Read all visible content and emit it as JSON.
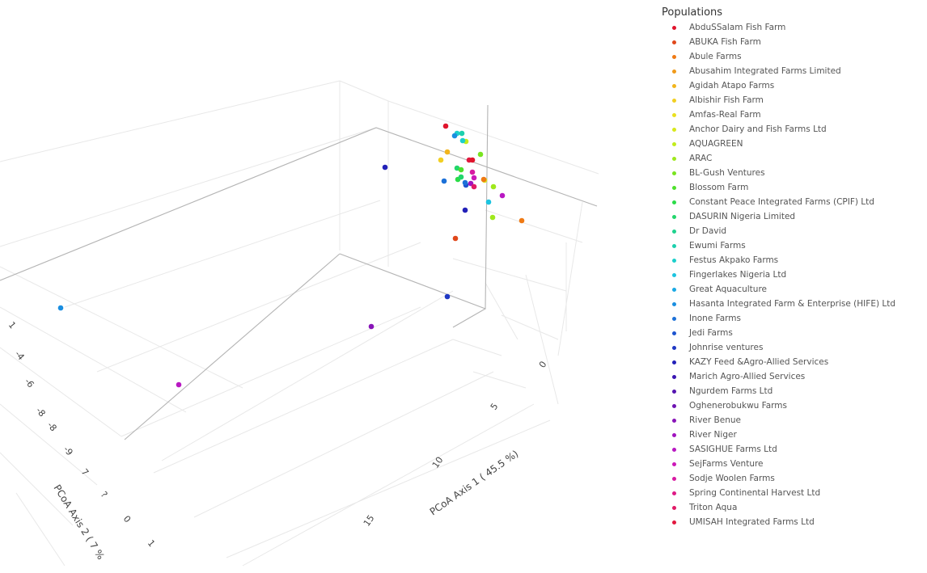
{
  "legend": {
    "title": "Populations"
  },
  "chart_data": {
    "type": "scatter3d",
    "title": "",
    "axes": {
      "x": {
        "label": "PCoA Axis 1 ( 45.5 %)",
        "ticks": [
          "0",
          "5",
          "10",
          "15"
        ]
      },
      "y": {
        "label": "PCoA Axis 2 ( 7 %",
        "ticks": [
          "1",
          "-4",
          "-6",
          "-8",
          "-8",
          "-9",
          "7",
          "?",
          "0",
          "1"
        ]
      }
    },
    "grid": true,
    "legend_position": "right",
    "series": [
      {
        "name": "AbduSSalam Fish Farm",
        "color": "#e0142c"
      },
      {
        "name": "ABUKA Fish Farm",
        "color": "#e0471b"
      },
      {
        "name": "Abule Farms",
        "color": "#ef7a14"
      },
      {
        "name": "Abusahim Integrated Farms Limited",
        "color": "#f09a1a"
      },
      {
        "name": "Agidah Atapo Farms",
        "color": "#f2b51c"
      },
      {
        "name": "Albishir Fish Farm",
        "color": "#f2cf22"
      },
      {
        "name": "Amfas-Real Farm",
        "color": "#e9e01f"
      },
      {
        "name": "Anchor Dairy and Fish Farms Ltd",
        "color": "#d8e81c"
      },
      {
        "name": "AQUAGREEN",
        "color": "#c2ec1b"
      },
      {
        "name": "ARAC",
        "color": "#9fe81c"
      },
      {
        "name": "BL-Gush Ventures",
        "color": "#79e420"
      },
      {
        "name": "Blossom Farm",
        "color": "#4ee02c"
      },
      {
        "name": "Constant Peace Integrated Farms (CPIF) Ltd",
        "color": "#2bdc48"
      },
      {
        "name": "DASURIN Nigeria Limited",
        "color": "#22d66c"
      },
      {
        "name": "Dr David",
        "color": "#1fd28e"
      },
      {
        "name": "Ewumi Farms",
        "color": "#1dd0ad"
      },
      {
        "name": "Festus Akpako Farms",
        "color": "#1ccfcb"
      },
      {
        "name": "Fingerlakes Nigeria Ltd",
        "color": "#1cc4e0"
      },
      {
        "name": "Great Aquaculture",
        "color": "#1aa9e4"
      },
      {
        "name": "Hasanta Integrated Farm & Enterprise (HIFE) Ltd",
        "color": "#1a8ee0"
      },
      {
        "name": "Inone Farms",
        "color": "#1c71d8"
      },
      {
        "name": "Jedi Farms",
        "color": "#1d54cf"
      },
      {
        "name": "Johnrise ventures",
        "color": "#1f38c4"
      },
      {
        "name": "KAZY Feed &Agro-Allied Services",
        "color": "#2321b8"
      },
      {
        "name": "Marich Agro-Allied Services",
        "color": "#3a16b2"
      },
      {
        "name": "Ngurdem Farms Ltd",
        "color": "#5414b0"
      },
      {
        "name": "Oghenerobukwu Farms",
        "color": "#6e14b2"
      },
      {
        "name": "River Benue",
        "color": "#8814b8"
      },
      {
        "name": "River Niger",
        "color": "#a014bf"
      },
      {
        "name": "SASIGHUE Farms Ltd",
        "color": "#b818c2"
      },
      {
        "name": "SejFarms Venture",
        "color": "#cc18b8"
      },
      {
        "name": "Sodje Woolen Farms",
        "color": "#d81aa2"
      },
      {
        "name": "Spring Continental Harvest Ltd",
        "color": "#de1a86"
      },
      {
        "name": "Triton Aqua",
        "color": "#e01a66"
      },
      {
        "name": "UMISAH Integrated Farms Ltd",
        "color": "#e2183e"
      }
    ],
    "points": [
      {
        "color": "#e0142c"
      },
      {
        "color": "#1ccfcb"
      },
      {
        "color": "#1dd0ad"
      },
      {
        "color": "#c2ec1b"
      },
      {
        "color": "#1a8ee0"
      },
      {
        "color": "#1ccfcb"
      },
      {
        "color": "#f2b51c"
      },
      {
        "color": "#79e420"
      },
      {
        "color": "#e2183e"
      },
      {
        "color": "#e0142c"
      },
      {
        "color": "#2321b8"
      },
      {
        "color": "#22d66c"
      },
      {
        "color": "#4ee02c"
      },
      {
        "color": "#d81aa2"
      },
      {
        "color": "#f2cf22"
      },
      {
        "color": "#1c71d8"
      },
      {
        "color": "#2bdc48"
      },
      {
        "color": "#d8e81c"
      },
      {
        "color": "#1d54cf"
      },
      {
        "color": "#a014bf"
      },
      {
        "color": "#e01a66"
      },
      {
        "color": "#1cc4e0"
      },
      {
        "color": "#b818c2"
      },
      {
        "color": "#2321b8"
      },
      {
        "color": "#9fe81c"
      },
      {
        "color": "#ef7a14"
      },
      {
        "color": "#e0471b"
      },
      {
        "color": "#1f38c4"
      },
      {
        "color": "#1a8ee0"
      },
      {
        "color": "#8814b8"
      },
      {
        "color": "#b818c2"
      },
      {
        "color": "#ef7a14"
      },
      {
        "color": "#cc18b8"
      },
      {
        "color": "#1c71d8"
      },
      {
        "color": "#9fe81c"
      },
      {
        "color": "#22d66c"
      }
    ]
  }
}
